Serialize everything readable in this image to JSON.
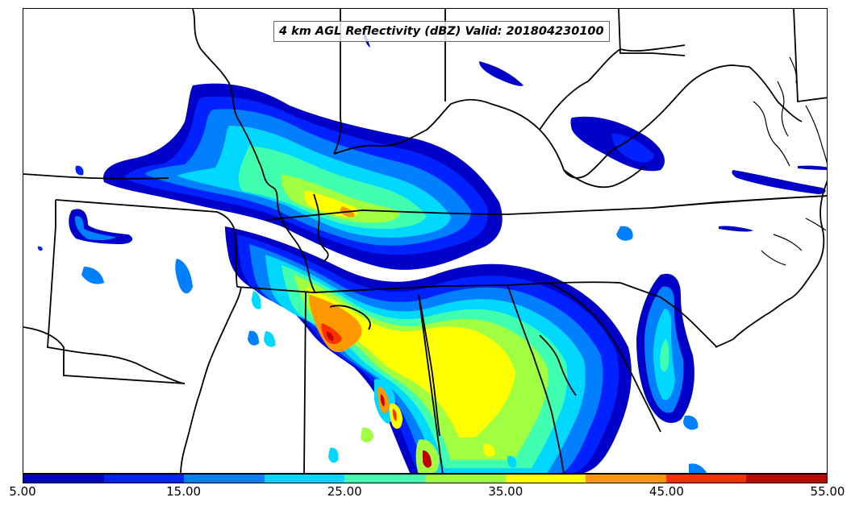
{
  "map": {
    "title": "4 km AGL Reflectivity (dBZ) Valid: 201804230100"
  },
  "colorbar": {
    "tick_labels": [
      "5.00",
      "15.00",
      "25.00",
      "35.00",
      "45.00",
      "55.00"
    ],
    "colors": [
      "#0000c8",
      "#0022ff",
      "#0080ff",
      "#00d8ff",
      "#40ffb0",
      "#a0ff40",
      "#ffff00",
      "#ff9800",
      "#ff3000",
      "#c00000"
    ]
  },
  "palette": {
    "dark_blue": "#0000c8",
    "blue": "#0022ff",
    "medium_blue": "#0080ff",
    "cyan": "#00d8ff",
    "aqua_green": "#40ffb0",
    "light_green": "#a0ff40",
    "yellow": "#ffff00",
    "orange": "#ff9800",
    "red_orange": "#ff3000",
    "dark_red": "#c00000"
  }
}
